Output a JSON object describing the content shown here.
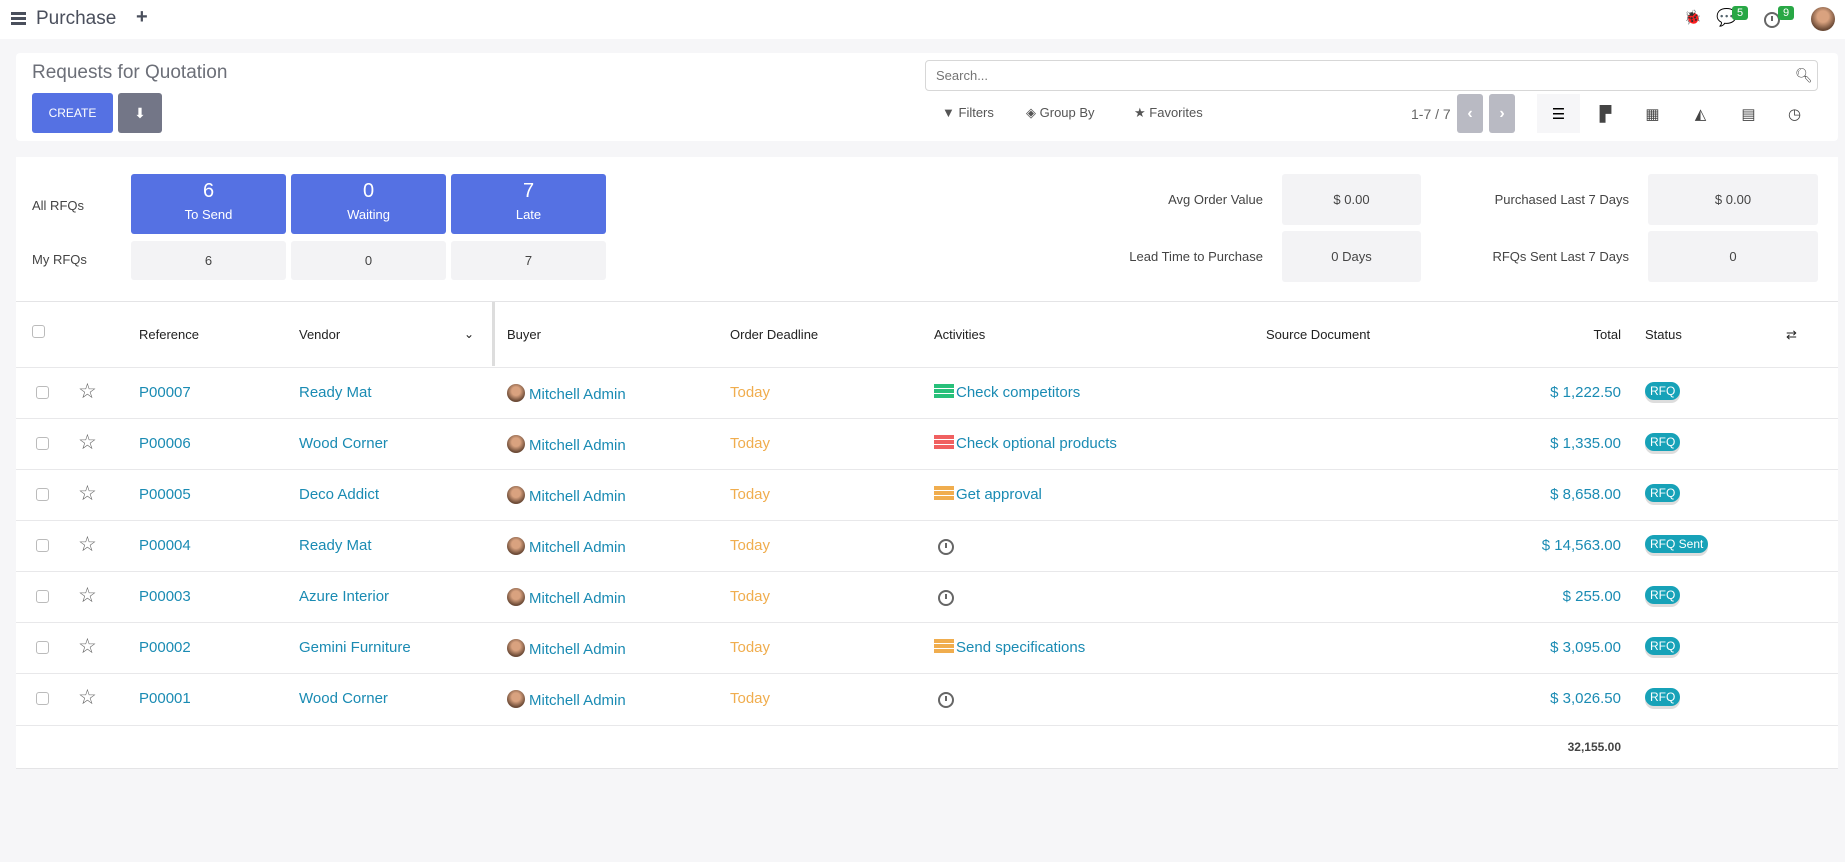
{
  "topbar": {
    "app": "Purchase",
    "messages_count": "5",
    "activities_count": "9"
  },
  "control": {
    "title": "Requests for Quotation",
    "create": "CREATE",
    "search_placeholder": "Search...",
    "filters": "Filters",
    "group_by": "Group By",
    "favorites": "Favorites",
    "pager": "1-7 / 7"
  },
  "dashboard": {
    "all_rfqs": "All RFQs",
    "my_rfqs": "My RFQs",
    "tiles": [
      {
        "n": "6",
        "label": "To Send",
        "mine": "6"
      },
      {
        "n": "0",
        "label": "Waiting",
        "mine": "0"
      },
      {
        "n": "7",
        "label": "Late",
        "mine": "7"
      }
    ],
    "stats": [
      {
        "label": "Avg Order Value",
        "value": "$ 0.00"
      },
      {
        "label": "Purchased Last 7 Days",
        "value": "$ 0.00"
      },
      {
        "label": "Lead Time to Purchase",
        "value": "0 Days"
      },
      {
        "label": "RFQs Sent Last 7 Days",
        "value": "0"
      }
    ]
  },
  "table": {
    "headers": {
      "reference": "Reference",
      "vendor": "Vendor",
      "buyer": "Buyer",
      "deadline": "Order Deadline",
      "activities": "Activities",
      "source": "Source Document",
      "total": "Total",
      "status": "Status"
    },
    "rows": [
      {
        "ref": "P00007",
        "vendor": "Ready Mat",
        "buyer": "Mitchell Admin",
        "deadline": "Today",
        "activity": "Check competitors",
        "activity_color": "#28c07a",
        "total": "$ 1,222.50",
        "status": "RFQ"
      },
      {
        "ref": "P00006",
        "vendor": "Wood Corner",
        "buyer": "Mitchell Admin",
        "deadline": "Today",
        "activity": "Check optional products",
        "activity_color": "#f06060",
        "total": "$ 1,335.00",
        "status": "RFQ"
      },
      {
        "ref": "P00005",
        "vendor": "Deco Addict",
        "buyer": "Mitchell Admin",
        "deadline": "Today",
        "activity": "Get approval",
        "activity_color": "#f0ad4e",
        "total": "$ 8,658.00",
        "status": "RFQ"
      },
      {
        "ref": "P00004",
        "vendor": "Ready Mat",
        "buyer": "Mitchell Admin",
        "deadline": "Today",
        "activity": "",
        "total": "$ 14,563.00",
        "status": "RFQ Sent"
      },
      {
        "ref": "P00003",
        "vendor": "Azure Interior",
        "buyer": "Mitchell Admin",
        "deadline": "Today",
        "activity": "",
        "total": "$ 255.00",
        "status": "RFQ"
      },
      {
        "ref": "P00002",
        "vendor": "Gemini Furniture",
        "buyer": "Mitchell Admin",
        "deadline": "Today",
        "activity": "Send specifications",
        "activity_color": "#f0ad4e",
        "total": "$ 3,095.00",
        "status": "RFQ"
      },
      {
        "ref": "P00001",
        "vendor": "Wood Corner",
        "buyer": "Mitchell Admin",
        "deadline": "Today",
        "activity": "",
        "total": "$ 3,026.50",
        "status": "RFQ"
      }
    ],
    "sum": "32,155.00"
  }
}
